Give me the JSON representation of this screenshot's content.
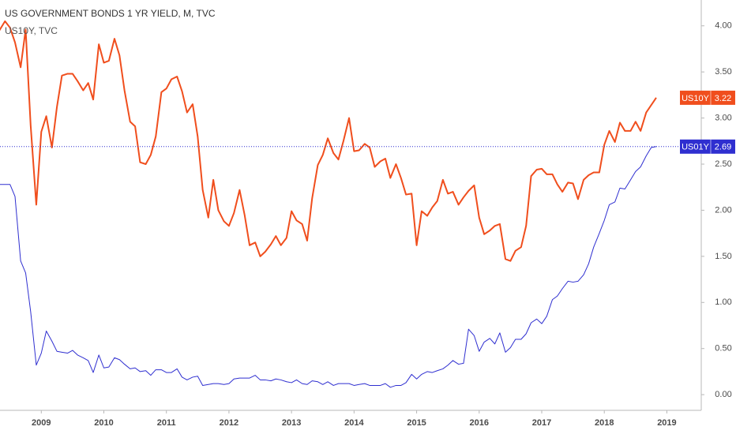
{
  "chart_data": {
    "type": "line",
    "title": "US GOVERNMENT BONDS 1 YR YIELD, M, TVC",
    "subtitle": "US10Y, TVC",
    "x": [
      2008.33,
      2008.42,
      2008.5,
      2008.58,
      2008.67,
      2008.75,
      2008.83,
      2008.92,
      2009,
      2009.08,
      2009.17,
      2009.25,
      2009.33,
      2009.42,
      2009.5,
      2009.58,
      2009.67,
      2009.75,
      2009.83,
      2009.92,
      2010,
      2010.08,
      2010.17,
      2010.25,
      2010.33,
      2010.42,
      2010.5,
      2010.58,
      2010.67,
      2010.75,
      2010.83,
      2010.92,
      2011,
      2011.08,
      2011.17,
      2011.25,
      2011.33,
      2011.42,
      2011.5,
      2011.58,
      2011.67,
      2011.75,
      2011.83,
      2011.92,
      2012,
      2012.08,
      2012.17,
      2012.25,
      2012.33,
      2012.42,
      2012.5,
      2012.58,
      2012.67,
      2012.75,
      2012.83,
      2012.92,
      2013,
      2013.08,
      2013.17,
      2013.25,
      2013.33,
      2013.42,
      2013.5,
      2013.58,
      2013.67,
      2013.75,
      2013.83,
      2013.92,
      2014,
      2014.08,
      2014.17,
      2014.25,
      2014.33,
      2014.42,
      2014.5,
      2014.58,
      2014.67,
      2014.75,
      2014.83,
      2014.92,
      2015,
      2015.08,
      2015.17,
      2015.25,
      2015.33,
      2015.42,
      2015.5,
      2015.58,
      2015.67,
      2015.75,
      2015.83,
      2015.92,
      2016,
      2016.08,
      2016.17,
      2016.25,
      2016.33,
      2016.42,
      2016.5,
      2016.58,
      2016.67,
      2016.75,
      2016.83,
      2016.92,
      2017,
      2017.08,
      2017.17,
      2017.25,
      2017.33,
      2017.42,
      2017.5,
      2017.58,
      2017.67,
      2017.75,
      2017.83,
      2017.92,
      2018,
      2018.08,
      2018.17,
      2018.25,
      2018.33,
      2018.42,
      2018.5,
      2018.58,
      2018.67,
      2018.75,
      2018.83
    ],
    "series": [
      {
        "name": "US10Y",
        "color": "#f04e1d",
        "width": 2,
        "values": [
          3.95,
          4.05,
          3.98,
          3.82,
          3.55,
          3.96,
          2.92,
          2.06,
          2.85,
          3.02,
          2.68,
          3.12,
          3.46,
          3.48,
          3.48,
          3.4,
          3.3,
          3.38,
          3.2,
          3.8,
          3.6,
          3.62,
          3.86,
          3.68,
          3.3,
          2.96,
          2.91,
          2.52,
          2.5,
          2.6,
          2.8,
          3.28,
          3.32,
          3.42,
          3.45,
          3.29,
          3.06,
          3.15,
          2.8,
          2.22,
          1.92,
          2.33,
          2.0,
          1.88,
          1.83,
          1.97,
          2.22,
          1.95,
          1.62,
          1.65,
          1.5,
          1.55,
          1.63,
          1.72,
          1.62,
          1.7,
          1.99,
          1.89,
          1.85,
          1.67,
          2.13,
          2.49,
          2.6,
          2.78,
          2.62,
          2.55,
          2.75,
          3.0,
          2.64,
          2.65,
          2.72,
          2.68,
          2.47,
          2.53,
          2.56,
          2.35,
          2.5,
          2.35,
          2.17,
          2.18,
          1.62,
          1.99,
          1.94,
          2.03,
          2.1,
          2.33,
          2.18,
          2.2,
          2.06,
          2.14,
          2.21,
          2.27,
          1.92,
          1.74,
          1.78,
          1.83,
          1.85,
          1.47,
          1.45,
          1.56,
          1.6,
          1.83,
          2.37,
          2.44,
          2.45,
          2.39,
          2.39,
          2.28,
          2.2,
          2.3,
          2.29,
          2.12,
          2.33,
          2.38,
          2.41,
          2.41,
          2.71,
          2.86,
          2.74,
          2.95,
          2.86,
          2.86,
          2.96,
          2.86,
          3.06,
          3.14,
          3.22
        ]
      },
      {
        "name": "US01Y",
        "color": "#2f2fd0",
        "width": 1,
        "price_line": true,
        "values": [
          2.28,
          2.28,
          2.28,
          2.15,
          1.45,
          1.32,
          0.9,
          0.32,
          0.45,
          0.69,
          0.58,
          0.47,
          0.46,
          0.45,
          0.48,
          0.43,
          0.4,
          0.37,
          0.24,
          0.43,
          0.29,
          0.3,
          0.4,
          0.38,
          0.33,
          0.28,
          0.29,
          0.25,
          0.26,
          0.21,
          0.27,
          0.27,
          0.24,
          0.24,
          0.28,
          0.19,
          0.16,
          0.19,
          0.2,
          0.1,
          0.11,
          0.12,
          0.12,
          0.11,
          0.12,
          0.17,
          0.18,
          0.18,
          0.18,
          0.21,
          0.16,
          0.16,
          0.15,
          0.17,
          0.16,
          0.14,
          0.13,
          0.16,
          0.12,
          0.11,
          0.15,
          0.14,
          0.11,
          0.14,
          0.1,
          0.12,
          0.12,
          0.12,
          0.1,
          0.11,
          0.12,
          0.1,
          0.1,
          0.1,
          0.12,
          0.08,
          0.1,
          0.1,
          0.13,
          0.22,
          0.17,
          0.22,
          0.25,
          0.24,
          0.26,
          0.28,
          0.32,
          0.37,
          0.33,
          0.34,
          0.71,
          0.64,
          0.47,
          0.57,
          0.61,
          0.55,
          0.67,
          0.46,
          0.51,
          0.6,
          0.6,
          0.66,
          0.78,
          0.82,
          0.77,
          0.85,
          1.03,
          1.07,
          1.15,
          1.23,
          1.22,
          1.23,
          1.3,
          1.42,
          1.6,
          1.75,
          1.89,
          2.06,
          2.09,
          2.24,
          2.23,
          2.33,
          2.42,
          2.47,
          2.59,
          2.68,
          2.69
        ]
      }
    ],
    "xlim": [
      2008.34,
      2019.55
    ],
    "xticks": [
      2009,
      2010,
      2011,
      2012,
      2013,
      2014,
      2015,
      2016,
      2017,
      2018,
      2019
    ],
    "ylim": [
      -0.17,
      4.28
    ],
    "yticks": [
      {
        "value": 4,
        "label": "4.00"
      },
      {
        "value": 3.5,
        "label": "3.50"
      },
      {
        "value": 3,
        "label": "3.00"
      },
      {
        "value": 2.5,
        "label": "2.50"
      },
      {
        "value": 2,
        "label": "2.00"
      },
      {
        "value": 1.5,
        "label": "1.50"
      },
      {
        "value": 1,
        "label": "1.00"
      },
      {
        "value": 0.5,
        "label": "0.50"
      },
      {
        "value": 0,
        "label": "0.00"
      }
    ],
    "grid": false
  }
}
